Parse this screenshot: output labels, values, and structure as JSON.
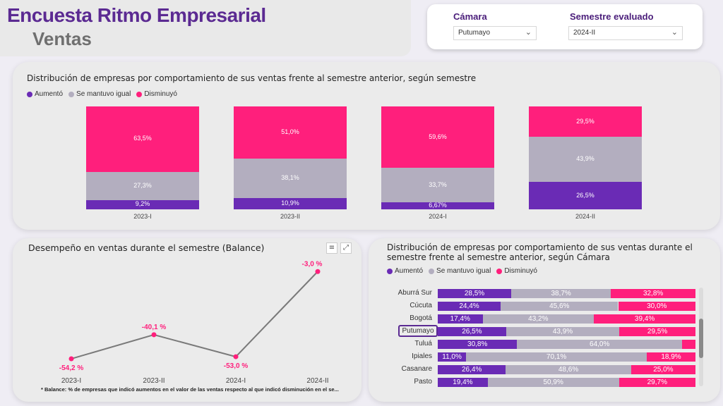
{
  "header": {
    "title": "Encuesta Ritmo Empresarial",
    "subtitle": "Ventas"
  },
  "filters": {
    "camara": {
      "label": "Cámara",
      "value": "Putumayo"
    },
    "semestre": {
      "label": "Semestre evaluado",
      "value": "2024-II"
    }
  },
  "colors": {
    "aumento": "#6a2bb5",
    "igual": "#b3aebf",
    "disminuyo": "#ff1f7c",
    "line": "#7a7a7a"
  },
  "legend": {
    "aumento": "Aumentó",
    "igual": "Se mantuvo igual",
    "disminuyo": "Disminuyó"
  },
  "top_chart": {
    "title": "Distribución de empresas por comportamiento de sus ventas frente al semestre anterior, según semestre",
    "chart_data": {
      "type": "bar",
      "stacked": true,
      "categories": [
        "2023-I",
        "2023-II",
        "2024-I",
        "2024-II"
      ],
      "series": [
        {
          "name": "Aumentó",
          "values": [
            9.2,
            10.9,
            6.67,
            26.5
          ],
          "labels": [
            "9,2%",
            "10,9%",
            "6,67%",
            "26,5%"
          ]
        },
        {
          "name": "Se mantuvo igual",
          "values": [
            27.3,
            38.1,
            33.7,
            43.9
          ],
          "labels": [
            "27,3%",
            "38,1%",
            "33,7%",
            "43,9%"
          ]
        },
        {
          "name": "Disminuyó",
          "values": [
            63.5,
            51.0,
            59.6,
            29.5
          ],
          "labels": [
            "63,5%",
            "51,0%",
            "59,6%",
            "29,5%"
          ]
        }
      ]
    }
  },
  "balance_chart": {
    "title": "Desempeño en ventas durante el semestre (Balance)",
    "footnote": "* Balance: % de empresas que indicó aumentos en el valor de las ventas respecto al que indicó disminución en el se...",
    "chart_data": {
      "type": "line",
      "categories": [
        "2023-I",
        "2023-II",
        "2024-I",
        "2024-II"
      ],
      "values": [
        -54.2,
        -40.1,
        -53.0,
        -3.0
      ],
      "labels": [
        "-54,2 %",
        "-40,1 %",
        "-53,0 %",
        "-3,0 %"
      ]
    }
  },
  "camara_chart": {
    "title_line1": "Distribución de empresas por comportamiento de sus ventas durante el",
    "title_line2": "semestre frente al semestre anterior, según Cámara",
    "highlight": "Putumayo",
    "chart_data": {
      "type": "bar",
      "orientation": "horizontal",
      "stacked": true,
      "categories": [
        "Aburrá Sur",
        "Cúcuta",
        "Bogotá",
        "Putumayo",
        "Tuluá",
        "Ipiales",
        "Casanare",
        "Pasto"
      ],
      "series": [
        {
          "name": "Aumentó",
          "values": [
            28.5,
            24.4,
            17.4,
            26.5,
            30.8,
            11.0,
            26.4,
            19.4
          ],
          "labels": [
            "28,5%",
            "24,4%",
            "17,4%",
            "26,5%",
            "30,8%",
            "11,0%",
            "26,4%",
            "19,4%"
          ]
        },
        {
          "name": "Se mantuvo igual",
          "values": [
            38.7,
            45.6,
            43.2,
            43.9,
            64.0,
            70.1,
            48.6,
            50.9
          ],
          "labels": [
            "38,7%",
            "45,6%",
            "43,2%",
            "43,9%",
            "64,0%",
            "70,1%",
            "48,6%",
            "50,9%"
          ]
        },
        {
          "name": "Disminuyó",
          "values": [
            32.8,
            30.0,
            39.4,
            29.5,
            5.2,
            18.9,
            25.0,
            29.7
          ],
          "labels": [
            "32,8%",
            "30,0%",
            "39,4%",
            "29,5%",
            "",
            "18,9%",
            "25,0%",
            "29,7%"
          ]
        }
      ]
    }
  }
}
